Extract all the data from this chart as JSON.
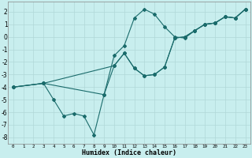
{
  "xlabel": "Humidex (Indice chaleur)",
  "bg_color": "#c8eeee",
  "grid_color": "#b0d8d8",
  "line_color": "#1a6b6b",
  "xlim": [
    -0.5,
    23.5
  ],
  "ylim": [
    -8.5,
    2.8
  ],
  "xticks": [
    0,
    1,
    2,
    3,
    4,
    5,
    6,
    7,
    8,
    9,
    10,
    11,
    12,
    13,
    14,
    15,
    16,
    17,
    18,
    19,
    20,
    21,
    22,
    23
  ],
  "yticks": [
    -8,
    -7,
    -6,
    -5,
    -4,
    -3,
    -2,
    -1,
    0,
    1,
    2
  ],
  "series": [
    {
      "x": [
        0,
        3,
        4,
        5,
        6,
        7,
        8,
        9,
        10,
        11,
        12,
        13,
        14,
        15,
        16,
        17,
        18,
        19,
        20,
        21,
        22,
        23
      ],
      "y": [
        -4,
        -3.7,
        -5.0,
        -6.3,
        -6.1,
        -6.3,
        -7.8,
        -4.6,
        -1.5,
        -0.7,
        1.5,
        2.2,
        1.8,
        0.8,
        0.0,
        -0.1,
        0.5,
        1.0,
        1.1,
        1.6,
        1.5,
        2.2
      ]
    },
    {
      "x": [
        0,
        3,
        9,
        10,
        11,
        12,
        13,
        14,
        15,
        16,
        17,
        18,
        19,
        20,
        21,
        22,
        23
      ],
      "y": [
        -4,
        -3.7,
        -4.6,
        -2.3,
        -1.3,
        -2.5,
        -3.1,
        -3.0,
        -2.4,
        -0.1,
        0.0,
        0.5,
        1.0,
        1.1,
        1.6,
        1.5,
        2.2
      ]
    },
    {
      "x": [
        0,
        3,
        10,
        11,
        12,
        13,
        14,
        15,
        16,
        17,
        18,
        19,
        20,
        21,
        22,
        23
      ],
      "y": [
        -4,
        -3.7,
        -2.3,
        -1.3,
        -2.5,
        -3.1,
        -3.0,
        -2.4,
        -0.1,
        0.0,
        0.5,
        1.0,
        1.1,
        1.6,
        1.5,
        2.2
      ]
    }
  ]
}
